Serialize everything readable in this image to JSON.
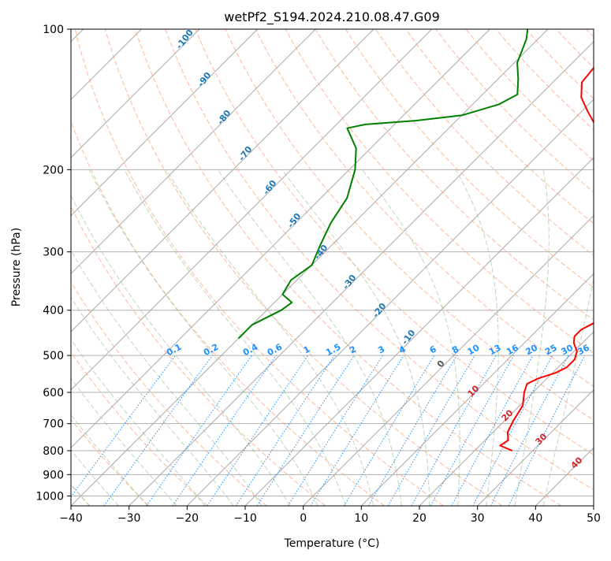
{
  "chart_data": {
    "type": "skew-t",
    "title": "wetPf2_S194.2024.210.08.47.G09",
    "xlabel": "Temperature (°C)",
    "ylabel": "Pressure (hPa)",
    "xlim": [
      -40,
      50
    ],
    "ylim": [
      1050,
      100
    ],
    "yscale": "log",
    "x_ticks": [
      -40,
      -30,
      -20,
      -10,
      0,
      10,
      20,
      30,
      40,
      50
    ],
    "y_ticks": [
      100,
      200,
      300,
      400,
      500,
      600,
      700,
      800,
      900,
      1000
    ],
    "grid": true,
    "colors": {
      "temperature": "#ff0000",
      "dewpoint": "#008000",
      "isotherm": "#aaaaaa",
      "dry_adiabat": "#ffa07a",
      "moist_adiabat": "#8fbc8f",
      "mixing_ratio": "#1e90ff",
      "isotherm_label": "#1f77b4",
      "adiabat_label": "#d62728"
    },
    "series": [
      {
        "kind": "temperature",
        "points": [
          {
            "p": 800,
            "t": 26.5
          },
          {
            "p": 780,
            "t": 23.5
          },
          {
            "p": 760,
            "t": 24.0
          },
          {
            "p": 730,
            "t": 22.5
          },
          {
            "p": 690,
            "t": 21.5
          },
          {
            "p": 640,
            "t": 20.5
          },
          {
            "p": 600,
            "t": 18.5
          },
          {
            "p": 575,
            "t": 17.5
          },
          {
            "p": 560,
            "t": 18.5
          },
          {
            "p": 545,
            "t": 20.5
          },
          {
            "p": 530,
            "t": 21.5
          },
          {
            "p": 510,
            "t": 21.5
          },
          {
            "p": 490,
            "t": 20.5
          },
          {
            "p": 470,
            "t": 18.5
          },
          {
            "p": 455,
            "t": 17.5
          },
          {
            "p": 440,
            "t": 17.5
          },
          {
            "p": 420,
            "t": 19.0
          },
          {
            "p": 400,
            "t": 18.5
          },
          {
            "p": 370,
            "t": 16.5
          },
          {
            "p": 340,
            "t": 13.5
          },
          {
            "p": 300,
            "t": 9.5
          },
          {
            "p": 260,
            "t": 3.5
          },
          {
            "p": 230,
            "t": -1.5
          },
          {
            "p": 200,
            "t": -6.5
          },
          {
            "p": 180,
            "t": -10.5
          },
          {
            "p": 160,
            "t": -15.5
          },
          {
            "p": 150,
            "t": -19.0
          },
          {
            "p": 140,
            "t": -22.5
          },
          {
            "p": 130,
            "t": -25.0
          },
          {
            "p": 120,
            "t": -25.5
          },
          {
            "p": 110,
            "t": -25.5
          },
          {
            "p": 100,
            "t": -25.5
          }
        ]
      },
      {
        "kind": "dewpoint",
        "points": [
          {
            "p": 460,
            "t": -40.0
          },
          {
            "p": 430,
            "t": -40.0
          },
          {
            "p": 400,
            "t": -37.5
          },
          {
            "p": 385,
            "t": -37.0
          },
          {
            "p": 370,
            "t": -40.0
          },
          {
            "p": 345,
            "t": -41.0
          },
          {
            "p": 320,
            "t": -40.0
          },
          {
            "p": 290,
            "t": -42.0
          },
          {
            "p": 260,
            "t": -44.0
          },
          {
            "p": 230,
            "t": -45.5
          },
          {
            "p": 200,
            "t": -49.0
          },
          {
            "p": 180,
            "t": -52.5
          },
          {
            "p": 163,
            "t": -57.5
          },
          {
            "p": 160,
            "t": -55.0
          },
          {
            "p": 157,
            "t": -47.0
          },
          {
            "p": 153,
            "t": -40.0
          },
          {
            "p": 145,
            "t": -35.5
          },
          {
            "p": 138,
            "t": -34.0
          },
          {
            "p": 128,
            "t": -36.5
          },
          {
            "p": 118,
            "t": -39.5
          },
          {
            "p": 110,
            "t": -41.0
          },
          {
            "p": 105,
            "t": -42.0
          },
          {
            "p": 100,
            "t": -43.5
          }
        ]
      }
    ],
    "isotherm_labels": [
      "-100",
      "-90",
      "-80",
      "-70",
      "-60",
      "-50",
      "-40",
      "-30",
      "-20",
      "-10",
      "0"
    ],
    "adiabat_labels": [
      "10",
      "20",
      "30",
      "40"
    ],
    "mixing_ratio_labels": [
      "0.1",
      "0.2",
      "0.4",
      "0.6",
      "1",
      "1.5",
      "2",
      "3",
      "4",
      "6",
      "8",
      "10",
      "13",
      "16",
      "20",
      "25",
      "30",
      "36"
    ]
  }
}
